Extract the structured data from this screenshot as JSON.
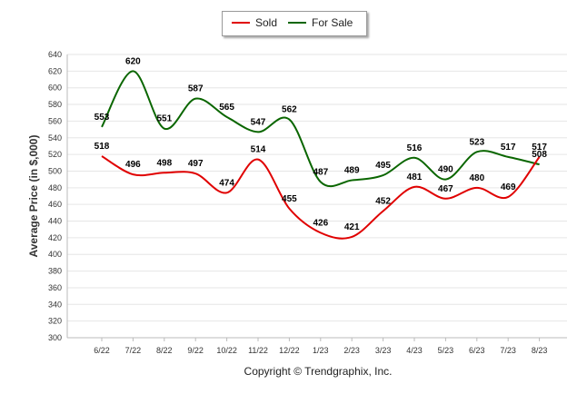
{
  "chart_data": {
    "type": "line",
    "title": "",
    "xlabel": "",
    "ylabel": "Average Price (in $,000)",
    "ylim": [
      300,
      640
    ],
    "ytick_step": 20,
    "categories": [
      "6/22",
      "7/22",
      "8/22",
      "9/22",
      "10/22",
      "11/22",
      "12/22",
      "1/23",
      "2/23",
      "3/23",
      "4/23",
      "5/23",
      "6/23",
      "7/23",
      "8/23"
    ],
    "series": [
      {
        "name": "Sold",
        "color": "#e00000",
        "values": [
          518,
          496,
          498,
          497,
          474,
          514,
          455,
          426,
          421,
          452,
          481,
          467,
          480,
          469,
          517
        ]
      },
      {
        "name": "For Sale",
        "color": "#0a6600",
        "values": [
          553,
          620,
          551,
          587,
          565,
          547,
          562,
          487,
          489,
          495,
          516,
          490,
          523,
          517,
          508
        ]
      }
    ],
    "legend": "top-center",
    "grid": true
  },
  "footer": {
    "copyright": "Copyright © Trendgraphix, Inc."
  }
}
